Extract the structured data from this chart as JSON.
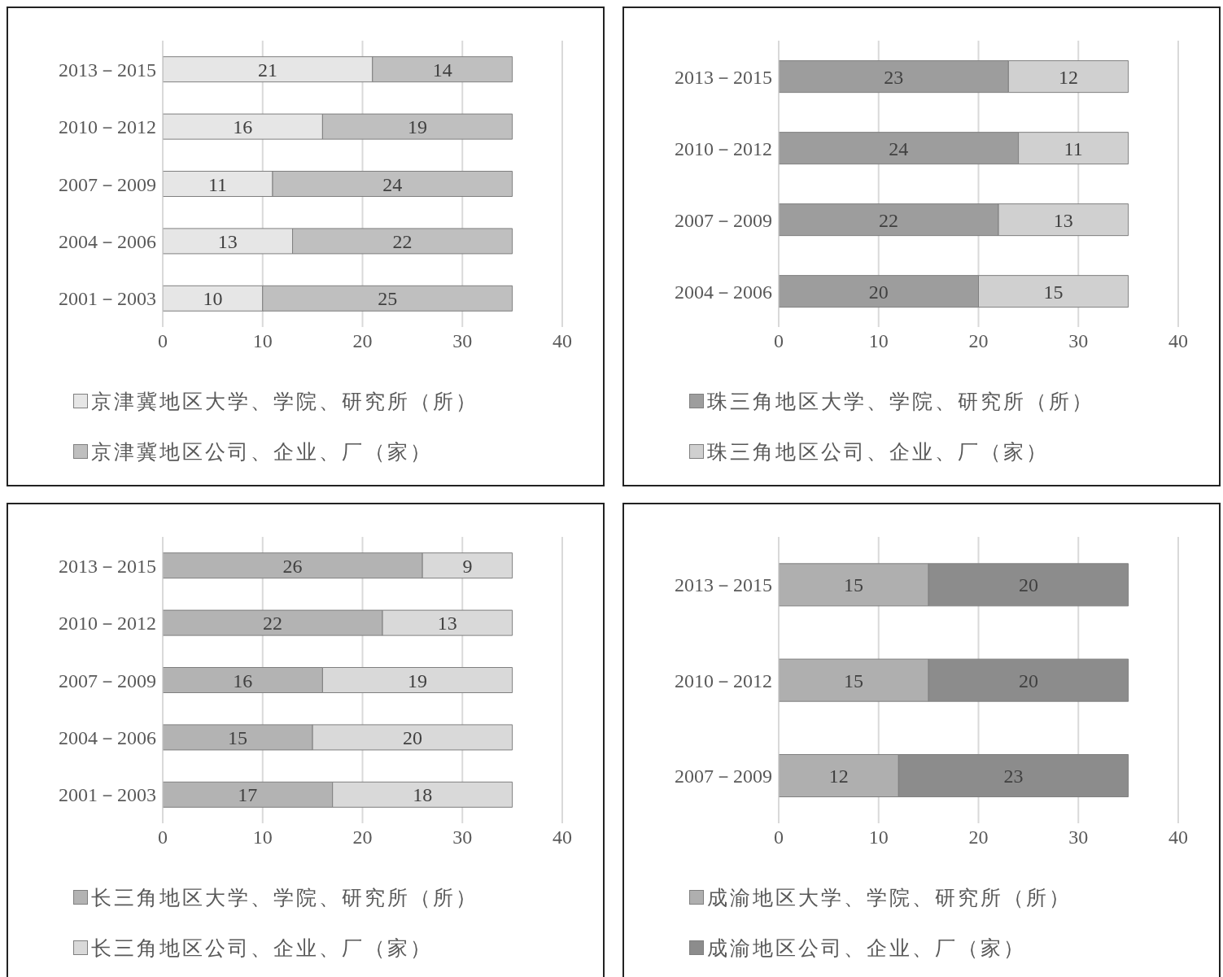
{
  "chart_data": [
    {
      "type": "bar",
      "orientation": "horizontal",
      "stacked": true,
      "categories": [
        "2013－2015",
        "2010－2012",
        "2007－2009",
        "2004－2006",
        "2001－2003"
      ],
      "series": [
        {
          "name": "京津冀地区大学、学院、研究所（所）",
          "color": "#e6e6e6",
          "values": [
            21,
            16,
            11,
            13,
            10
          ]
        },
        {
          "name": "京津冀地区公司、企业、厂（家）",
          "color": "#bfbfbf",
          "values": [
            14,
            19,
            24,
            22,
            25
          ]
        }
      ],
      "xlim": [
        0,
        40
      ],
      "xticks": [
        0,
        10,
        20,
        30,
        40
      ],
      "grid": "x",
      "legend": "bottom",
      "data_labels": true
    },
    {
      "type": "bar",
      "orientation": "horizontal",
      "stacked": true,
      "categories": [
        "2013－2015",
        "2010－2012",
        "2007－2009",
        "2004－2006"
      ],
      "series": [
        {
          "name": "珠三角地区大学、学院、研究所（所）",
          "color": "#9d9d9d",
          "values": [
            23,
            24,
            22,
            20
          ]
        },
        {
          "name": "珠三角地区公司、企业、厂（家）",
          "color": "#d0d0d0",
          "values": [
            12,
            11,
            13,
            15
          ]
        }
      ],
      "xlim": [
        0,
        40
      ],
      "xticks": [
        0,
        10,
        20,
        30,
        40
      ],
      "grid": "x",
      "legend": "bottom",
      "data_labels": true
    },
    {
      "type": "bar",
      "orientation": "horizontal",
      "stacked": true,
      "categories": [
        "2013－2015",
        "2010－2012",
        "2007－2009",
        "2004－2006",
        "2001－2003"
      ],
      "series": [
        {
          "name": "长三角地区大学、学院、研究所（所）",
          "color": "#b3b3b3",
          "values": [
            26,
            22,
            16,
            15,
            17
          ]
        },
        {
          "name": "长三角地区公司、企业、厂（家）",
          "color": "#d9d9d9",
          "values": [
            9,
            13,
            19,
            20,
            18
          ]
        }
      ],
      "xlim": [
        0,
        40
      ],
      "xticks": [
        0,
        10,
        20,
        30,
        40
      ],
      "grid": "x",
      "legend": "bottom",
      "data_labels": true
    },
    {
      "type": "bar",
      "orientation": "horizontal",
      "stacked": true,
      "categories": [
        "2013－2015",
        "2010－2012",
        "2007－2009"
      ],
      "series": [
        {
          "name": "成渝地区大学、学院、研究所（所）",
          "color": "#afafaf",
          "values": [
            15,
            15,
            12
          ]
        },
        {
          "name": "成渝地区公司、企业、厂（家）",
          "color": "#8c8c8c",
          "values": [
            20,
            20,
            23
          ]
        }
      ],
      "xlim": [
        0,
        40
      ],
      "xticks": [
        0,
        10,
        20,
        30,
        40
      ],
      "grid": "x",
      "legend": "bottom",
      "data_labels": true
    }
  ]
}
